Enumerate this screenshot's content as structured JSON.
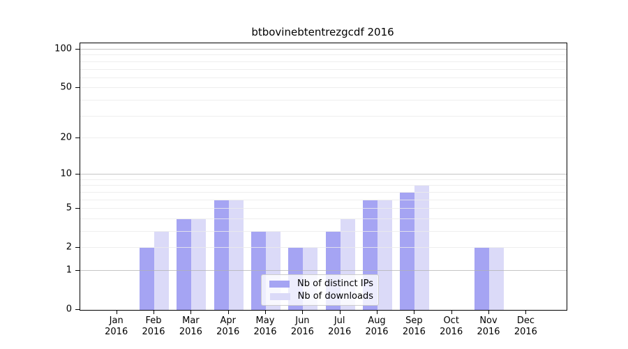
{
  "chart_data": {
    "type": "bar",
    "title": "btbovinebtentrezgcdf 2016",
    "year": "2016",
    "categories": [
      "Jan",
      "Feb",
      "Mar",
      "Apr",
      "May",
      "Jun",
      "Jul",
      "Aug",
      "Sep",
      "Oct",
      "Nov",
      "Dec"
    ],
    "series": [
      {
        "name": "Nb of distinct IPs",
        "color": "#a5a4f3",
        "values": [
          0,
          2,
          4,
          6,
          3,
          2,
          3,
          6,
          7,
          0,
          2,
          0
        ]
      },
      {
        "name": "Nb of downloads",
        "color": "#dbdaf8",
        "values": [
          0,
          3,
          4,
          6,
          3,
          2,
          4,
          6,
          8,
          0,
          2,
          0
        ]
      }
    ],
    "xlabel": "",
    "ylabel": "",
    "yscale": "log1p",
    "yticks": [
      0,
      1,
      2,
      5,
      10,
      20,
      50,
      100
    ],
    "yticks_minor": [
      2,
      3,
      4,
      5,
      6,
      7,
      8,
      9,
      20,
      30,
      40,
      50,
      60,
      70,
      80,
      90
    ],
    "yticks_major_grid": [
      1,
      10,
      100
    ],
    "ylim": [
      0,
      112
    ],
    "grid": "on",
    "legend_position": "lower-center",
    "colors": {
      "axis": "#000000",
      "major_grid": "#b2b2b2",
      "minor_grid": "#ebebeb",
      "background": "#ffffff"
    }
  }
}
